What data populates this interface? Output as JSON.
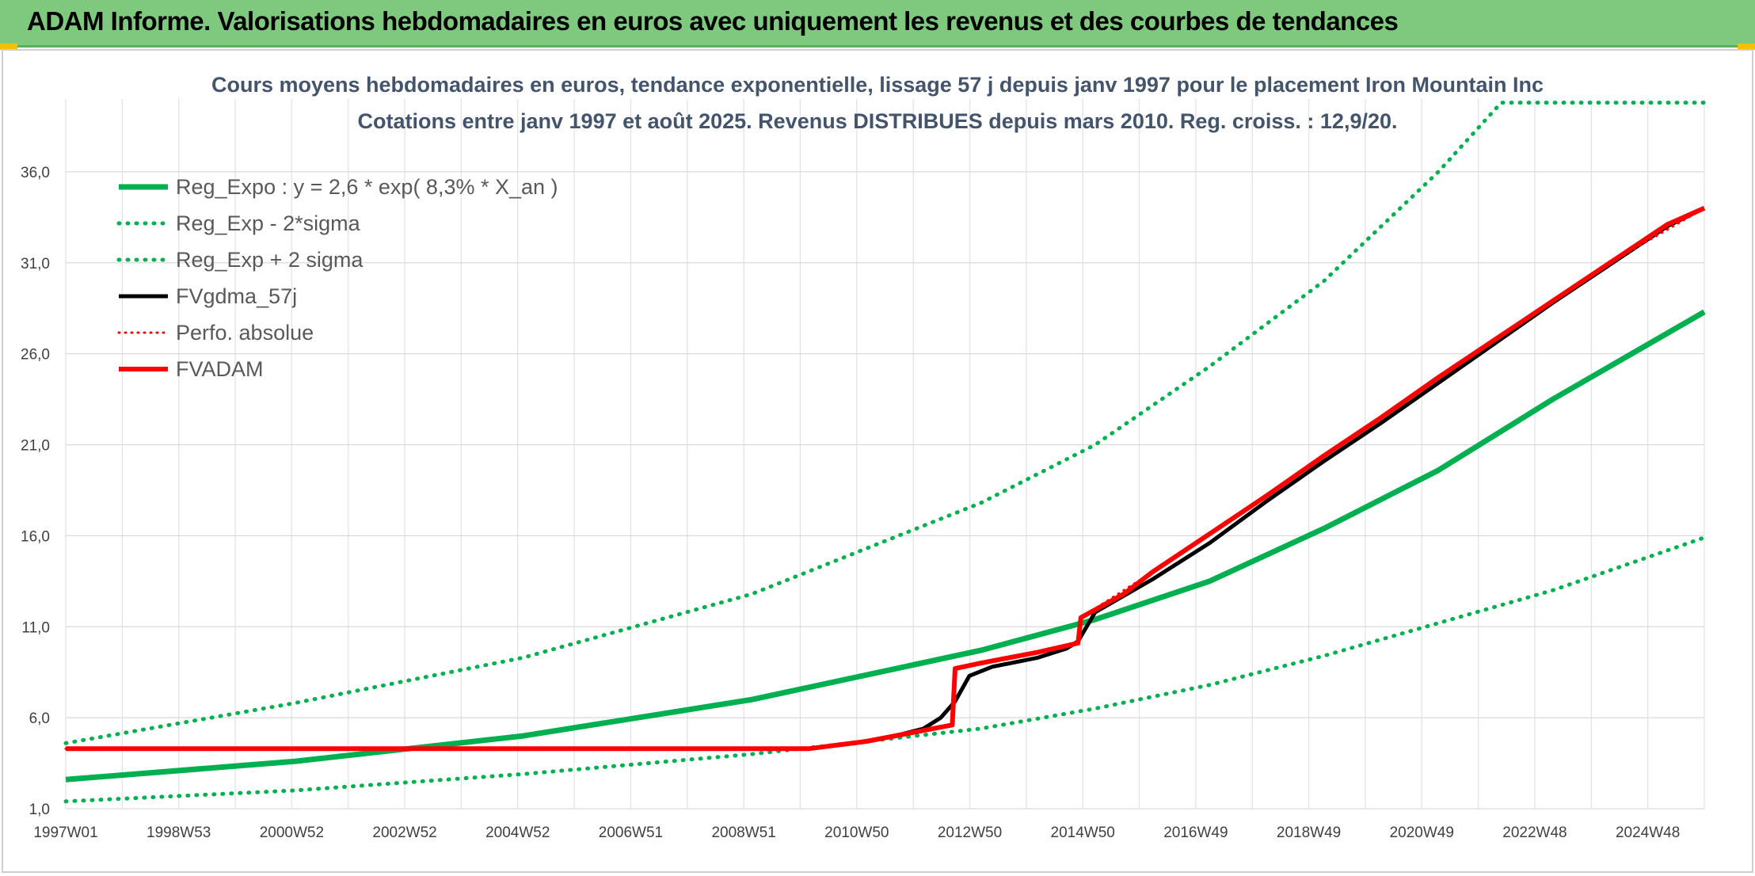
{
  "header": {
    "title": "ADAM Informe. Valorisations hebdomadaires en euros avec uniquement les revenus et des courbes de tendances"
  },
  "colors": {
    "header_bg": "#7fc97f",
    "reg_expo": "#00b050",
    "sigma_bands": "#00b050",
    "fvgdma": "#000000",
    "perfo_absolue": "#ff0000",
    "fvadam": "#ff0000"
  },
  "chart_data": {
    "type": "line",
    "title": "Cours moyens hebdomadaires en euros, tendance exponentielle, lissage 57 j depuis janv 1997 pour le placement Iron Mountain Inc",
    "subtitle": "Cotations entre janv 1997 et août 2025. Revenus DISTRIBUES depuis mars 2010. Reg. croiss. : 12,9/20.",
    "xlabel": "",
    "ylabel": "",
    "x_ticks": [
      "1997W01",
      "1998W53",
      "2000W52",
      "2002W52",
      "2004W52",
      "2006W51",
      "2008W51",
      "2010W50",
      "2012W50",
      "2014W50",
      "2016W49",
      "2018W49",
      "2020W49",
      "2022W48",
      "2024W48"
    ],
    "x_range": [
      1997.0,
      2025.65
    ],
    "y_ticks": [
      "1,0",
      "6,0",
      "11,0",
      "16,0",
      "21,0",
      "26,0",
      "31,0",
      "36,0"
    ],
    "ylim": [
      1,
      40
    ],
    "grid": true,
    "legend_position": "top-left",
    "series": [
      {
        "name": "Reg_Expo : y = 2,6 * exp( 8,3% *  X_an )",
        "style": "solid-thick-green",
        "x": [
          1997.0,
          2001.0,
          2005.0,
          2009.0,
          2013.0,
          2015.0,
          2017.0,
          2019.0,
          2021.0,
          2023.0,
          2025.65
        ],
        "y": [
          2.6,
          3.6,
          5.0,
          7.0,
          9.7,
          11.4,
          13.5,
          16.4,
          19.6,
          23.5,
          28.3
        ]
      },
      {
        "name": "Reg_Exp - 2*sigma",
        "style": "dotted-green",
        "x": [
          1997.0,
          2001.0,
          2005.0,
          2009.0,
          2013.0,
          2015.0,
          2017.0,
          2019.0,
          2021.0,
          2023.0,
          2025.65
        ],
        "y": [
          1.4,
          2.0,
          2.9,
          4.0,
          5.4,
          6.5,
          7.8,
          9.4,
          11.2,
          13.0,
          15.9
        ]
      },
      {
        "name": "Reg_Exp + 2 sigma",
        "style": "dotted-green",
        "x": [
          1997.0,
          2001.0,
          2005.0,
          2009.0,
          2013.0,
          2015.0,
          2017.0,
          2019.0,
          2021.0,
          2022.1,
          2025.65
        ],
        "y": [
          4.6,
          6.8,
          9.3,
          12.8,
          17.8,
          21.0,
          25.3,
          30.0,
          36.0,
          39.8,
          39.8
        ]
      },
      {
        "name": "FVgdma_57j",
        "style": "solid-black",
        "x": [
          1997.0,
          2000.0,
          2004.0,
          2008.0,
          2010.0,
          2010.8,
          2011.5,
          2012.0,
          2012.3,
          2012.55,
          2012.8,
          2013.2,
          2014.0,
          2014.5,
          2014.7,
          2015.0,
          2016.0,
          2017.0,
          2018.0,
          2019.0,
          2020.0,
          2021.0,
          2022.0,
          2023.0,
          2024.0,
          2025.0,
          2025.65
        ],
        "y": [
          4.3,
          4.3,
          4.3,
          4.3,
          4.3,
          4.6,
          5.0,
          5.4,
          6.0,
          6.9,
          8.3,
          8.8,
          9.3,
          9.8,
          10.2,
          11.8,
          13.6,
          15.6,
          17.9,
          20.1,
          22.2,
          24.4,
          26.6,
          28.8,
          30.9,
          33.0,
          34.0
        ]
      },
      {
        "name": "Perfo. absolue",
        "style": "dotted-red",
        "x": [
          1997.0,
          2010.0,
          2011.0,
          2012.0,
          2012.5,
          2012.55,
          2014.0,
          2014.7,
          2014.75,
          2016.0,
          2018.0,
          2020.0,
          2022.0,
          2024.0,
          2025.65
        ],
        "y": [
          4.3,
          4.3,
          4.7,
          5.3,
          5.6,
          8.7,
          9.6,
          10.1,
          11.5,
          14.0,
          18.2,
          22.5,
          26.8,
          31.0,
          34.0
        ]
      },
      {
        "name": "FVADAM",
        "style": "solid-red",
        "x": [
          1997.0,
          2000.0,
          2004.0,
          2008.0,
          2010.0,
          2011.0,
          2012.0,
          2012.5,
          2012.55,
          2013.0,
          2014.0,
          2014.7,
          2014.75,
          2015.5,
          2016.0,
          2017.0,
          2018.0,
          2019.0,
          2020.0,
          2021.0,
          2022.0,
          2023.0,
          2024.0,
          2025.0,
          2025.65
        ],
        "y": [
          4.3,
          4.3,
          4.3,
          4.3,
          4.3,
          4.7,
          5.3,
          5.6,
          8.7,
          9.0,
          9.6,
          10.1,
          11.5,
          12.8,
          14.0,
          16.1,
          18.2,
          20.4,
          22.5,
          24.7,
          26.8,
          28.9,
          31.0,
          33.1,
          34.0
        ]
      }
    ]
  }
}
